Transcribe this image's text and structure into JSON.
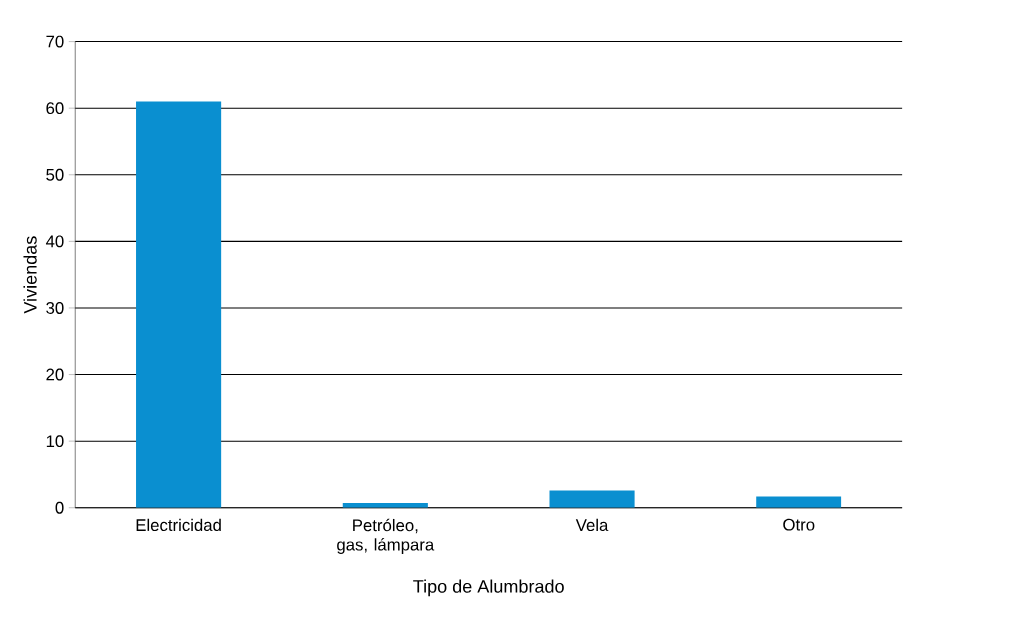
{
  "chart_data": {
    "type": "bar",
    "xlabel": "Tipo de Alumbrado",
    "ylabel": "Viviendas",
    "categories": [
      "Electricidad",
      "Petróleo, gas, lámpara",
      "Vela",
      "Otro"
    ],
    "values": [
      61,
      0.7,
      2.6,
      1.7
    ],
    "color": "#0a8fd0",
    "ylim": [
      0,
      70
    ],
    "yticks": [
      0,
      10,
      20,
      30,
      40,
      50,
      60,
      70
    ],
    "grid": "y"
  }
}
